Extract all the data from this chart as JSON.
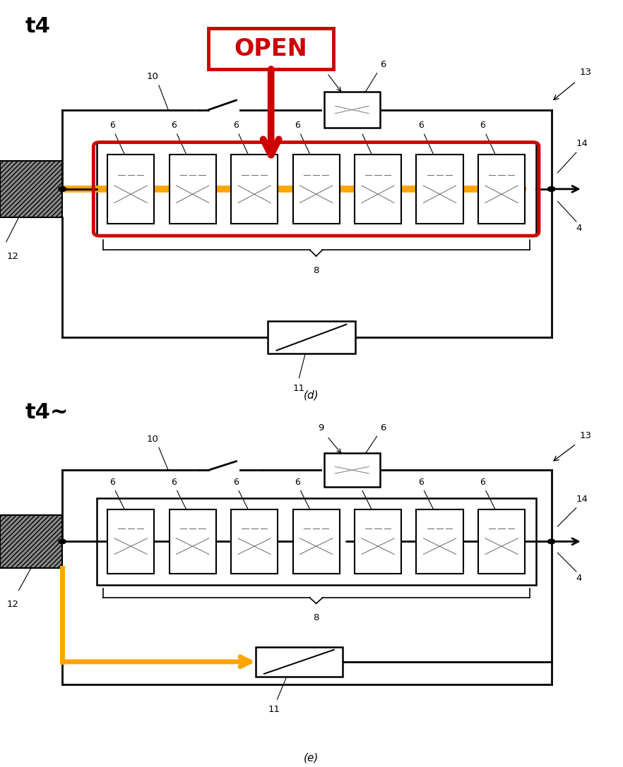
{
  "fig_width": 8.82,
  "fig_height": 10.87,
  "bg_color": "#ffffff",
  "title_d": "t4",
  "title_e": "t4~",
  "label_d": "(d)",
  "label_e": "(e)",
  "open_text": "OPEN",
  "open_color": "#cc0000",
  "orange_color": "#FFA500",
  "black_color": "#000000",
  "red_color": "#cc0000",
  "num_modules": 7
}
